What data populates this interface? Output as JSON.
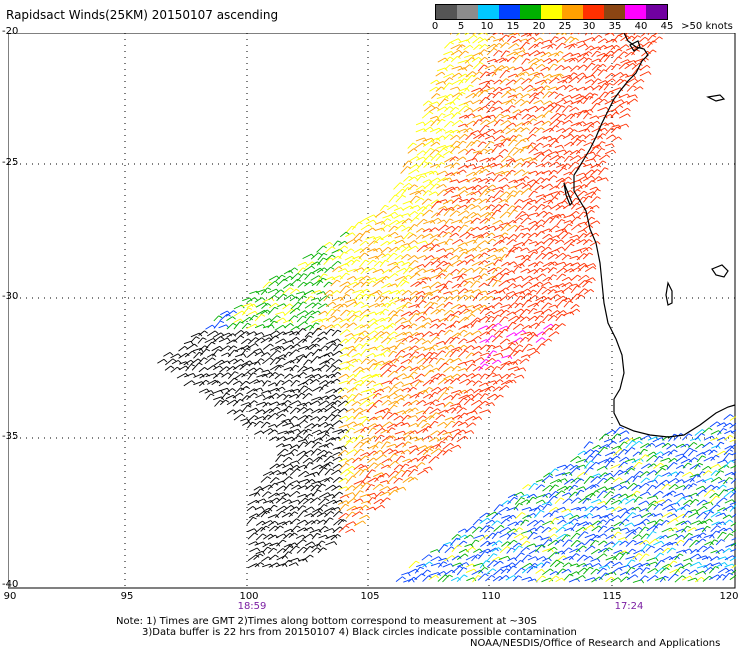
{
  "title": "Rapidsact Winds(25KM) 20150107 ascending",
  "legend": {
    "labels": [
      "0",
      "5",
      "10",
      "15",
      "20",
      "25",
      "30",
      "35",
      "40",
      "45",
      ">50 knots"
    ],
    "colors": [
      "#555555",
      "#8c8c8c",
      "#00c8ff",
      "#0040ff",
      "#00b000",
      "#ffff00",
      "#ffa000",
      "#ff3000",
      "#8b4513",
      "#ff00ff",
      "#7000a0"
    ]
  },
  "axes": {
    "lat_labels": [
      "-20",
      "-25",
      "-30",
      "-35",
      "-40"
    ],
    "lon_labels": [
      "90",
      "95",
      "100",
      "105",
      "110",
      "115",
      "120"
    ]
  },
  "times": {
    "left": "18:59",
    "right": "17:24"
  },
  "notes": {
    "line1": "Note: 1) Times are GMT 2)Times along bottom correspond to measurement at ~30S",
    "line2": "3)Data buffer is 22 hrs from 20150107 4) Black circles indicate possible contamination",
    "line3": "NOAA/NESDIS/Office of Research and Applications"
  },
  "colors": {
    "coast": "#000000",
    "grid": "#000000",
    "time_text": "#7b1fa2"
  }
}
